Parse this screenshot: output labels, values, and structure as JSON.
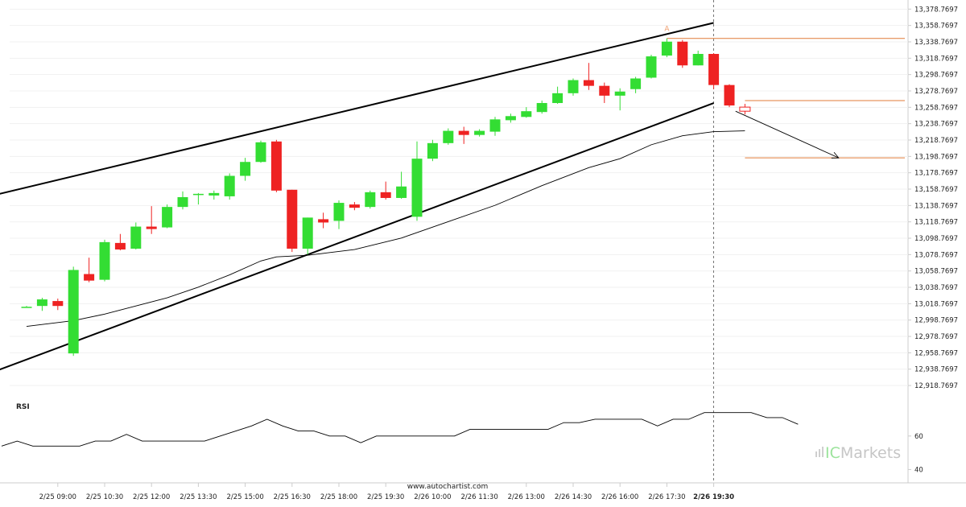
{
  "chart_data": {
    "type": "candlestick",
    "price_axis_ticks": [
      "13,378.7697",
      "13,358.7697",
      "13,338.7697",
      "13,318.7697",
      "13,298.7697",
      "13,278.7697",
      "13,258.7697",
      "13,238.7697",
      "13,218.7697",
      "13,198.7697",
      "13,178.7697",
      "13,158.7697",
      "13,138.7697",
      "13,118.7697",
      "13,098.7697",
      "13,078.7697",
      "13,058.7697",
      "13,038.7697",
      "13,018.7697",
      "12,998.7697",
      "12,978.7697",
      "12,958.7697",
      "12,938.7697",
      "12,918.7697"
    ],
    "price_range": [
      12908,
      13384
    ],
    "time_axis_labels": [
      {
        "index": 2,
        "label": "2/25 09:00"
      },
      {
        "index": 5,
        "label": "2/25 10:30"
      },
      {
        "index": 8,
        "label": "2/25 12:00"
      },
      {
        "index": 11,
        "label": "2/25 13:30"
      },
      {
        "index": 14,
        "label": "2/25 15:00"
      },
      {
        "index": 17,
        "label": "2/25 16:30"
      },
      {
        "index": 20,
        "label": "2/25 18:00"
      },
      {
        "index": 23,
        "label": "2/25 19:30"
      },
      {
        "index": 26,
        "label": "2/26 10:00"
      },
      {
        "index": 29,
        "label": "2/26 11:30"
      },
      {
        "index": 32,
        "label": "2/26 13:00"
      },
      {
        "index": 35,
        "label": "2/26 14:30"
      },
      {
        "index": 38,
        "label": "2/26 16:00"
      },
      {
        "index": 41,
        "label": "2/26 17:30"
      },
      {
        "index": 44,
        "label": "2/26 19:30"
      }
    ],
    "candles": [
      {
        "o": 13015,
        "h": 13016,
        "l": 13015,
        "c": 13015
      },
      {
        "o": 13016,
        "h": 13026,
        "l": 13010,
        "c": 13024
      },
      {
        "o": 13022,
        "h": 13025,
        "l": 13011,
        "c": 13016
      },
      {
        "o": 12958,
        "h": 13064,
        "l": 12955,
        "c": 13060
      },
      {
        "o": 13055,
        "h": 13075,
        "l": 13045,
        "c": 13047
      },
      {
        "o": 13048,
        "h": 13097,
        "l": 13046,
        "c": 13094
      },
      {
        "o": 13093,
        "h": 13104,
        "l": 13084,
        "c": 13085
      },
      {
        "o": 13086,
        "h": 13118,
        "l": 13085,
        "c": 13113
      },
      {
        "o": 13113,
        "h": 13138,
        "l": 13104,
        "c": 13110
      },
      {
        "o": 13112,
        "h": 13140,
        "l": 13111,
        "c": 13137
      },
      {
        "o": 13137,
        "h": 13156,
        "l": 13134,
        "c": 13149
      },
      {
        "o": 13152,
        "h": 13154,
        "l": 13140,
        "c": 13153
      },
      {
        "o": 13151,
        "h": 13157,
        "l": 13146,
        "c": 13154
      },
      {
        "o": 13150,
        "h": 13178,
        "l": 13146,
        "c": 13175
      },
      {
        "o": 13175,
        "h": 13197,
        "l": 13169,
        "c": 13192
      },
      {
        "o": 13192,
        "h": 13218,
        "l": 13191,
        "c": 13216
      },
      {
        "o": 13217,
        "h": 13219,
        "l": 13155,
        "c": 13157
      },
      {
        "o": 13158,
        "h": 13158,
        "l": 13082,
        "c": 13086
      },
      {
        "o": 13086,
        "h": 13124,
        "l": 13079,
        "c": 13124
      },
      {
        "o": 13122,
        "h": 13130,
        "l": 13111,
        "c": 13118
      },
      {
        "o": 13120,
        "h": 13145,
        "l": 13110,
        "c": 13142
      },
      {
        "o": 13140,
        "h": 13143,
        "l": 13133,
        "c": 13136
      },
      {
        "o": 13137,
        "h": 13157,
        "l": 13135,
        "c": 13155
      },
      {
        "o": 13155,
        "h": 13168,
        "l": 13146,
        "c": 13148
      },
      {
        "o": 13148,
        "h": 13180,
        "l": 13147,
        "c": 13162
      },
      {
        "o": 13125,
        "h": 13217,
        "l": 13120,
        "c": 13196
      },
      {
        "o": 13196,
        "h": 13219,
        "l": 13193,
        "c": 13215
      },
      {
        "o": 13215,
        "h": 13233,
        "l": 13213,
        "c": 13230
      },
      {
        "o": 13230,
        "h": 13235,
        "l": 13214,
        "c": 13225
      },
      {
        "o": 13225,
        "h": 13232,
        "l": 13223,
        "c": 13230
      },
      {
        "o": 13229,
        "h": 13247,
        "l": 13224,
        "c": 13244
      },
      {
        "o": 13243,
        "h": 13251,
        "l": 13240,
        "c": 13248
      },
      {
        "o": 13247,
        "h": 13259,
        "l": 13246,
        "c": 13254
      },
      {
        "o": 13253,
        "h": 13267,
        "l": 13251,
        "c": 13264
      },
      {
        "o": 13264,
        "h": 13284,
        "l": 13263,
        "c": 13276
      },
      {
        "o": 13276,
        "h": 13294,
        "l": 13273,
        "c": 13292
      },
      {
        "o": 13292,
        "h": 13313,
        "l": 13280,
        "c": 13285
      },
      {
        "o": 13285,
        "h": 13289,
        "l": 13264,
        "c": 13273
      },
      {
        "o": 13273,
        "h": 13282,
        "l": 13255,
        "c": 13278
      },
      {
        "o": 13281,
        "h": 13296,
        "l": 13276,
        "c": 13294
      },
      {
        "o": 13295,
        "h": 13323,
        "l": 13294,
        "c": 13321
      },
      {
        "o": 13322,
        "h": 13343,
        "l": 13320,
        "c": 13339
      },
      {
        "o": 13339,
        "h": 13341,
        "l": 13307,
        "c": 13310
      },
      {
        "o": 13310,
        "h": 13328,
        "l": 13310,
        "c": 13324
      },
      {
        "o": 13324,
        "h": 13325,
        "l": 13281,
        "c": 13286
      },
      {
        "o": 13286,
        "h": 13287,
        "l": 13259,
        "c": 13261
      }
    ],
    "forecast_candle": {
      "index": 46,
      "o": 13259,
      "h": 13263,
      "l": 13250,
      "c": 13254
    },
    "moving_average": [
      {
        "i": 0,
        "v": 12991
      },
      {
        "i": 3,
        "v": 12998
      },
      {
        "i": 5,
        "v": 13006
      },
      {
        "i": 7,
        "v": 13016
      },
      {
        "i": 9,
        "v": 13026
      },
      {
        "i": 11,
        "v": 13039
      },
      {
        "i": 13,
        "v": 13054
      },
      {
        "i": 15,
        "v": 13071
      },
      {
        "i": 16,
        "v": 13076
      },
      {
        "i": 18,
        "v": 13078
      },
      {
        "i": 21,
        "v": 13085
      },
      {
        "i": 24,
        "v": 13099
      },
      {
        "i": 27,
        "v": 13119
      },
      {
        "i": 30,
        "v": 13139
      },
      {
        "i": 33,
        "v": 13163
      },
      {
        "i": 36,
        "v": 13185
      },
      {
        "i": 38,
        "v": 13196
      },
      {
        "i": 40,
        "v": 13213
      },
      {
        "i": 42,
        "v": 13224
      },
      {
        "i": 44,
        "v": 13229
      },
      {
        "i": 46,
        "v": 13230
      }
    ],
    "pattern_lines": [
      {
        "name": "resistance",
        "from": {
          "i": -2.6,
          "v": 13149
        },
        "to": {
          "i": 44,
          "v": 13362
        }
      },
      {
        "name": "support",
        "from": {
          "i": -2.6,
          "v": 12932
        },
        "to": {
          "i": 44,
          "v": 13264
        }
      }
    ],
    "forecast_arrow": {
      "from": {
        "i": 45.4,
        "v": 13254
      },
      "to": {
        "i": 52,
        "v": 13197
      }
    },
    "levels": [
      {
        "v": 13343,
        "from_i": 41,
        "color": "#e07b39"
      },
      {
        "v": 13267,
        "from_i": 46,
        "color": "#e07b39"
      },
      {
        "v": 13197,
        "from_i": 46,
        "color": "#e07b39"
      }
    ],
    "marker_label": {
      "text": "A",
      "i": 41,
      "v": 13350
    },
    "vertical_marker_index": 44,
    "rsi": {
      "label": "RSI",
      "ticks": [
        "60",
        "40"
      ],
      "range": [
        33,
        82
      ],
      "values": [
        54,
        57,
        54,
        54,
        54,
        54,
        57,
        57,
        61,
        57,
        57,
        57,
        57,
        57,
        60,
        63,
        66,
        70,
        66,
        63,
        63,
        60,
        60,
        56,
        60,
        60,
        60,
        60,
        60,
        60,
        64,
        64,
        64,
        64,
        64,
        64,
        68,
        68,
        70,
        70,
        70,
        70,
        66,
        70,
        70,
        74,
        74,
        74,
        74,
        71,
        71,
        67
      ],
      "start_index": -1.6,
      "colors": {
        "line": "#000000"
      }
    },
    "colors": {
      "up": "#33dd33",
      "down": "#ee2222",
      "channel": "#000000",
      "ma": "#000000",
      "levels": "#e07b39"
    }
  },
  "watermark": "www.autochartist.com",
  "brand": {
    "prefix": "IC",
    "suffix": "Markets"
  }
}
